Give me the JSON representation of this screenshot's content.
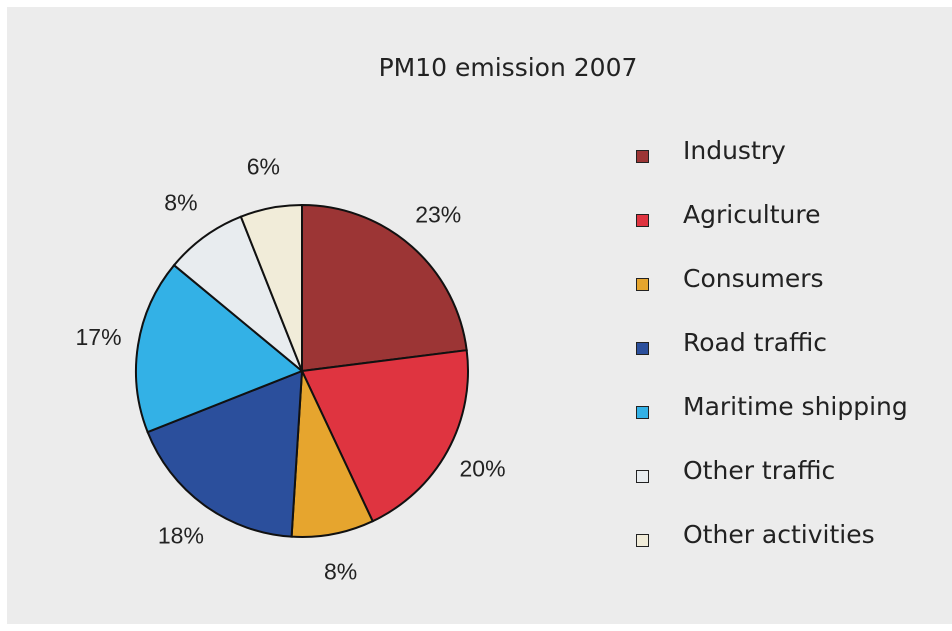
{
  "chart_data": {
    "type": "pie",
    "title": "PM10 emission 2007",
    "slices": [
      {
        "name": "Industry",
        "value": 23,
        "label": "23%",
        "color": "#9c3535"
      },
      {
        "name": "Agriculture",
        "value": 20,
        "label": "20%",
        "color": "#df3440"
      },
      {
        "name": "Consumers",
        "value": 8,
        "label": "8%",
        "color": "#e6a52e"
      },
      {
        "name": "Road traffic",
        "value": 18,
        "label": "18%",
        "color": "#2b4f9c"
      },
      {
        "name": "Maritime shipping",
        "value": 17,
        "label": "17%",
        "color": "#33b1e6"
      },
      {
        "name": "Other traffic",
        "value": 8,
        "label": "8%",
        "color": "#e8ecef"
      },
      {
        "name": "Other activities",
        "value": 6,
        "label": "6%",
        "color": "#f1ecd9"
      }
    ],
    "legend_position": "right"
  }
}
